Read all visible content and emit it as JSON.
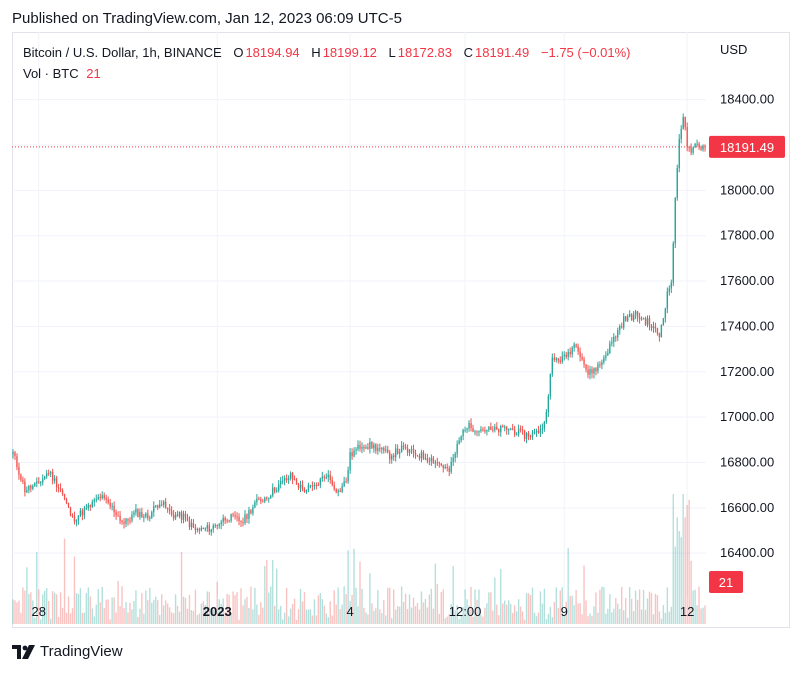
{
  "published": "Published on TradingView.com, Jan 12, 2023 06:09 UTC-5",
  "legend": {
    "symbol": "Bitcoin / U.S. Dollar, 1h, BINANCE",
    "o_label": "O",
    "o": "18194.94",
    "h_label": "H",
    "h": "18199.12",
    "l_label": "L",
    "l": "18172.83",
    "c_label": "C",
    "c": "18191.49",
    "change": "−1.75 (−0.01%)",
    "vol_label": "Vol · BTC",
    "vol_value": "21"
  },
  "currency": "USD",
  "footer": {
    "brand": "TradingView"
  },
  "colors": {
    "up": "#26a69a",
    "down": "#ef5350",
    "price_tag": "#f23645",
    "grid": "#f0f3fa"
  },
  "chart_data": {
    "type": "candlestick",
    "y_ticks": [
      16400,
      16600,
      16800,
      17000,
      17200,
      17400,
      17600,
      17800,
      18000,
      18200,
      18400
    ],
    "y_tick_labels": [
      "16400.00",
      "16600.00",
      "16800.00",
      "17000.00",
      "17200.00",
      "17400.00",
      "17600.00",
      "17800.00",
      "18000.00",
      "",
      "18400.00"
    ],
    "ylim": [
      16220,
      18610
    ],
    "x_tick_labels": [
      "28",
      "2023",
      "4",
      "12:00",
      "9",
      "12"
    ],
    "x_tick_index": [
      13,
      103,
      170,
      228,
      278,
      340
    ],
    "last_price": 18191.49,
    "last_price_label": "18191.49",
    "last_volume_label": "21",
    "price_path": [
      [
        0,
        16840
      ],
      [
        6,
        16680
      ],
      [
        12,
        16700
      ],
      [
        18,
        16760
      ],
      [
        24,
        16680
      ],
      [
        30,
        16550
      ],
      [
        38,
        16600
      ],
      [
        44,
        16650
      ],
      [
        50,
        16600
      ],
      [
        56,
        16530
      ],
      [
        62,
        16580
      ],
      [
        68,
        16560
      ],
      [
        74,
        16630
      ],
      [
        80,
        16570
      ],
      [
        86,
        16560
      ],
      [
        92,
        16500
      ],
      [
        100,
        16510
      ],
      [
        108,
        16560
      ],
      [
        116,
        16540
      ],
      [
        122,
        16620
      ],
      [
        128,
        16650
      ],
      [
        134,
        16700
      ],
      [
        140,
        16740
      ],
      [
        146,
        16680
      ],
      [
        152,
        16690
      ],
      [
        158,
        16750
      ],
      [
        164,
        16670
      ],
      [
        168,
        16720
      ],
      [
        170,
        16830
      ],
      [
        176,
        16880
      ],
      [
        182,
        16870
      ],
      [
        190,
        16830
      ],
      [
        196,
        16860
      ],
      [
        202,
        16840
      ],
      [
        210,
        16820
      ],
      [
        216,
        16790
      ],
      [
        220,
        16760
      ],
      [
        224,
        16870
      ],
      [
        228,
        16960
      ],
      [
        234,
        16950
      ],
      [
        242,
        16940
      ],
      [
        250,
        16950
      ],
      [
        258,
        16920
      ],
      [
        264,
        16930
      ],
      [
        268,
        16970
      ],
      [
        272,
        17250
      ],
      [
        278,
        17260
      ],
      [
        284,
        17330
      ],
      [
        290,
        17190
      ],
      [
        296,
        17230
      ],
      [
        302,
        17330
      ],
      [
        308,
        17430
      ],
      [
        314,
        17450
      ],
      [
        320,
        17420
      ],
      [
        326,
        17360
      ],
      [
        330,
        17540
      ],
      [
        332,
        17600
      ],
      [
        334,
        17950
      ],
      [
        336,
        18240
      ],
      [
        338,
        18330
      ],
      [
        340,
        18200
      ],
      [
        342,
        18150
      ],
      [
        344,
        18200
      ],
      [
        349,
        18191.49
      ]
    ]
  }
}
